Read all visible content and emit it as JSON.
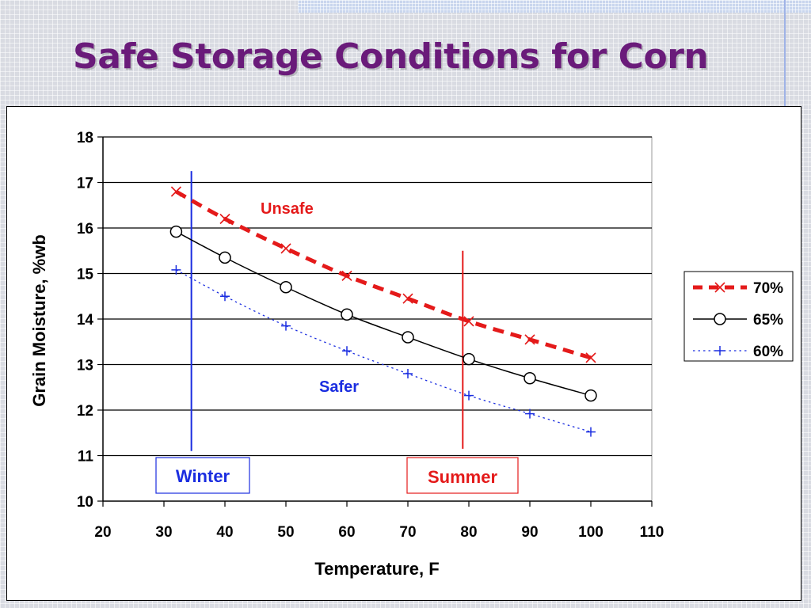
{
  "slide": {
    "title": "Safe Storage Conditions for Corn"
  },
  "chart_data": {
    "type": "line",
    "xlabel": "Temperature, F",
    "ylabel": "Grain Moisture, %wb",
    "xlim": [
      20,
      110
    ],
    "ylim": [
      10,
      18
    ],
    "x_ticks": [
      20,
      30,
      40,
      50,
      60,
      70,
      80,
      90,
      100,
      110
    ],
    "y_ticks": [
      10,
      11,
      12,
      13,
      14,
      15,
      16,
      17,
      18
    ],
    "grid": "horizontal major lines",
    "legend": {
      "position": "right"
    },
    "x": [
      32,
      40,
      50,
      60,
      70,
      80,
      90,
      100
    ],
    "series": [
      {
        "name": "70%",
        "values": [
          16.8,
          16.2,
          15.55,
          14.95,
          14.45,
          13.95,
          13.55,
          13.15
        ],
        "color": "#e41a1a",
        "marker": "x",
        "line": "heavy-dash"
      },
      {
        "name": "65%",
        "values": [
          15.92,
          15.35,
          14.7,
          14.1,
          13.6,
          13.12,
          12.7,
          12.32
        ],
        "color": "#000000",
        "marker": "circle",
        "line": "solid"
      },
      {
        "name": "60%",
        "values": [
          15.08,
          14.5,
          13.85,
          13.3,
          12.8,
          12.32,
          11.92,
          11.52
        ],
        "color": "#1a2de0",
        "marker": "plus",
        "line": "dotted"
      }
    ],
    "annotations": {
      "unsafe": {
        "text": "Unsafe",
        "color": "#e41a1a"
      },
      "safer": {
        "text": "Safer",
        "color": "#1a2de0"
      },
      "winter": {
        "text": "Winter",
        "color": "#1a2de0",
        "x": 34.5,
        "y_range": [
          11.1,
          17.25
        ]
      },
      "summer": {
        "text": "Summer",
        "color": "#e41a1a",
        "x": 79,
        "y_range": [
          11.15,
          15.5
        ]
      }
    }
  }
}
